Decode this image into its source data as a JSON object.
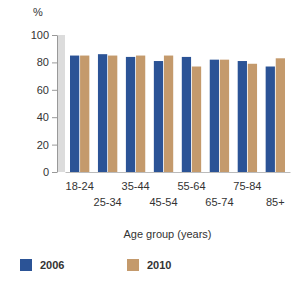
{
  "chart_data": {
    "type": "bar",
    "ylabel": "%",
    "xlabel": "Age group (years)",
    "categories": [
      "18-24",
      "25-34",
      "35-44",
      "45-54",
      "55-64",
      "65-74",
      "75-84",
      "85+"
    ],
    "series": [
      {
        "name": "2006",
        "color": "#2b5396",
        "values": [
          85,
          86,
          84,
          81,
          84,
          82,
          81,
          77
        ]
      },
      {
        "name": "2010",
        "color": "#c49a6c",
        "values": [
          85,
          85,
          85,
          85,
          77,
          82,
          79,
          83
        ]
      }
    ],
    "ylim": [
      0,
      100
    ],
    "yticks": [
      0,
      20,
      40,
      60,
      80,
      100
    ],
    "grid": false,
    "legend": "bottom-left"
  }
}
